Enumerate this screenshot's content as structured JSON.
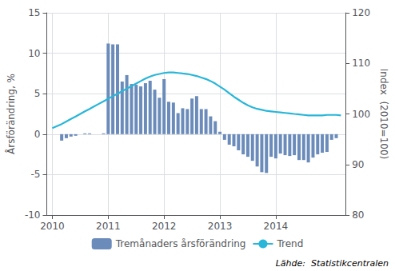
{
  "chart_data": {
    "type": "bar",
    "ylabel": "Årsförändring, %",
    "y2label": "Index  (2010=100)",
    "annotations": [
      "Lähde:  Statistikcentralen"
    ],
    "xlim": [
      2009.9,
      2015.25
    ],
    "xticks": [
      2010,
      2011,
      2012,
      2013,
      2014
    ],
    "ylim": [
      -10,
      15
    ],
    "yticks": [
      -10,
      -5,
      0,
      5,
      10,
      15
    ],
    "y2lim": [
      80,
      120
    ],
    "y2ticks": [
      80,
      90,
      100,
      110,
      120
    ],
    "grid": true,
    "legend": "bottom",
    "series": [
      {
        "name": "Tremånaders årsförändring",
        "type": "bar",
        "color": "#6b8cba",
        "x": [
          2010.167,
          2010.25,
          2010.333,
          2010.417,
          2010.5,
          2010.583,
          2010.667,
          2010.75,
          2010.833,
          2010.917,
          2011.0,
          2011.083,
          2011.167,
          2011.25,
          2011.333,
          2011.417,
          2011.5,
          2011.583,
          2011.667,
          2011.75,
          2011.833,
          2011.917,
          2012.0,
          2012.083,
          2012.167,
          2012.25,
          2012.333,
          2012.417,
          2012.5,
          2012.583,
          2012.667,
          2012.75,
          2012.833,
          2012.917,
          2013.0,
          2013.083,
          2013.167,
          2013.25,
          2013.333,
          2013.417,
          2013.5,
          2013.583,
          2013.667,
          2013.75,
          2013.833,
          2013.917,
          2014.0,
          2014.083,
          2014.167,
          2014.25,
          2014.333,
          2014.417,
          2014.5,
          2014.583,
          2014.667,
          2014.75,
          2014.833,
          2014.917,
          2015.0,
          2015.083
        ],
        "values": [
          -0.8,
          -0.5,
          -0.3,
          -0.2,
          0.0,
          0.1,
          0.1,
          0.0,
          0.0,
          0.1,
          11.2,
          11.1,
          11.1,
          6.5,
          7.3,
          6.2,
          6.1,
          5.9,
          6.3,
          6.6,
          5.5,
          4.5,
          6.8,
          4.0,
          3.9,
          2.6,
          3.2,
          3.1,
          4.4,
          4.7,
          3.1,
          3.1,
          2.2,
          1.6,
          0.3,
          -0.7,
          -1.3,
          -1.5,
          -2.0,
          -2.5,
          -2.8,
          -3.3,
          -4.0,
          -4.7,
          -4.8,
          -2.8,
          -3.0,
          -2.4,
          -2.6,
          -2.7,
          -2.6,
          -3.2,
          -3.2,
          -3.5,
          -2.9,
          -2.5,
          -2.3,
          -2.2,
          -0.7,
          -0.5
        ]
      },
      {
        "name": "Trend",
        "type": "line",
        "axis": "y2",
        "color": "#29b6d8",
        "x": [
          2010.0,
          2010.083,
          2010.167,
          2010.25,
          2010.333,
          2010.417,
          2010.5,
          2010.583,
          2010.667,
          2010.75,
          2010.833,
          2010.917,
          2011.0,
          2011.083,
          2011.167,
          2011.25,
          2011.333,
          2011.417,
          2011.5,
          2011.583,
          2011.667,
          2011.75,
          2011.833,
          2011.917,
          2012.0,
          2012.083,
          2012.167,
          2012.25,
          2012.333,
          2012.417,
          2012.5,
          2012.583,
          2012.667,
          2012.75,
          2012.833,
          2012.917,
          2013.0,
          2013.083,
          2013.167,
          2013.25,
          2013.333,
          2013.417,
          2013.5,
          2013.583,
          2013.667,
          2013.75,
          2013.833,
          2013.917,
          2014.0,
          2014.083,
          2014.167,
          2014.25,
          2014.333,
          2014.417,
          2014.5,
          2014.583,
          2014.667,
          2014.75,
          2014.833,
          2014.917,
          2015.0,
          2015.083,
          2015.167
        ],
        "values": [
          97.2,
          97.6,
          98.0,
          98.5,
          99.0,
          99.5,
          100.0,
          100.5,
          101.0,
          101.5,
          102.0,
          102.5,
          103.0,
          103.5,
          104.0,
          104.5,
          105.0,
          105.5,
          106.0,
          106.5,
          107.0,
          107.4,
          107.7,
          107.9,
          108.1,
          108.2,
          108.2,
          108.1,
          108.0,
          107.9,
          107.7,
          107.5,
          107.2,
          106.9,
          106.5,
          106.0,
          105.4,
          104.8,
          104.1,
          103.4,
          102.8,
          102.2,
          101.7,
          101.3,
          101.0,
          100.8,
          100.6,
          100.5,
          100.4,
          100.3,
          100.2,
          100.1,
          100.0,
          99.9,
          99.8,
          99.7,
          99.7,
          99.7,
          99.7,
          99.8,
          99.8,
          99.8,
          99.7
        ]
      }
    ]
  }
}
